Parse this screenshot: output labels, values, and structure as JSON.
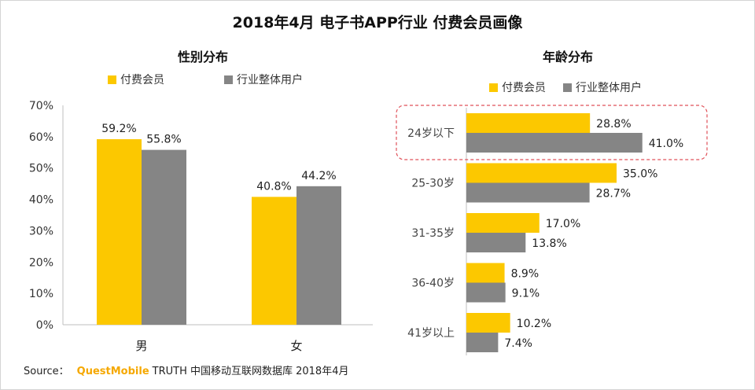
{
  "title": "2018年4月 电子书APP行业 付费会员画像",
  "source": {
    "prefix": "Source：",
    "brand": "QuestMobile",
    "suffix": "TRUTH 中国移动互联网数据库 2018年4月"
  },
  "colors": {
    "paid": "#fcc800",
    "overall": "#858585",
    "highlight": "#e0525a",
    "axis": "#bfbfbf"
  },
  "chart_data": [
    {
      "type": "bar",
      "title": "性别分布",
      "categories": [
        "男",
        "女"
      ],
      "series": [
        {
          "name": "付费会员",
          "values": [
            59.2,
            40.8
          ],
          "labels": [
            "59.2%",
            "40.8%"
          ]
        },
        {
          "name": "行业整体用户",
          "values": [
            55.8,
            44.2
          ],
          "labels": [
            "55.8%",
            "44.2%"
          ]
        }
      ],
      "ylim": [
        0,
        70
      ],
      "yticks": [
        "0%",
        "10%",
        "20%",
        "30%",
        "40%",
        "50%",
        "60%",
        "70%"
      ],
      "legend": "top",
      "grid": false
    },
    {
      "type": "bar",
      "orientation": "horizontal",
      "title": "年龄分布",
      "categories": [
        "24岁以下",
        "25-30岁",
        "31-35岁",
        "36-40岁",
        "41岁以上"
      ],
      "series": [
        {
          "name": "付费会员",
          "values": [
            28.8,
            35.0,
            17.0,
            8.9,
            10.2
          ],
          "labels": [
            "28.8%",
            "35.0%",
            "17.0%",
            "8.9%",
            "10.2%"
          ]
        },
        {
          "name": "行业整体用户",
          "values": [
            41.0,
            28.7,
            13.8,
            9.1,
            7.4
          ],
          "labels": [
            "41.0%",
            "28.7%",
            "13.8%",
            "9.1%",
            "7.4%"
          ]
        }
      ],
      "highlight_category": "24岁以下",
      "legend": "top",
      "grid": false
    }
  ]
}
